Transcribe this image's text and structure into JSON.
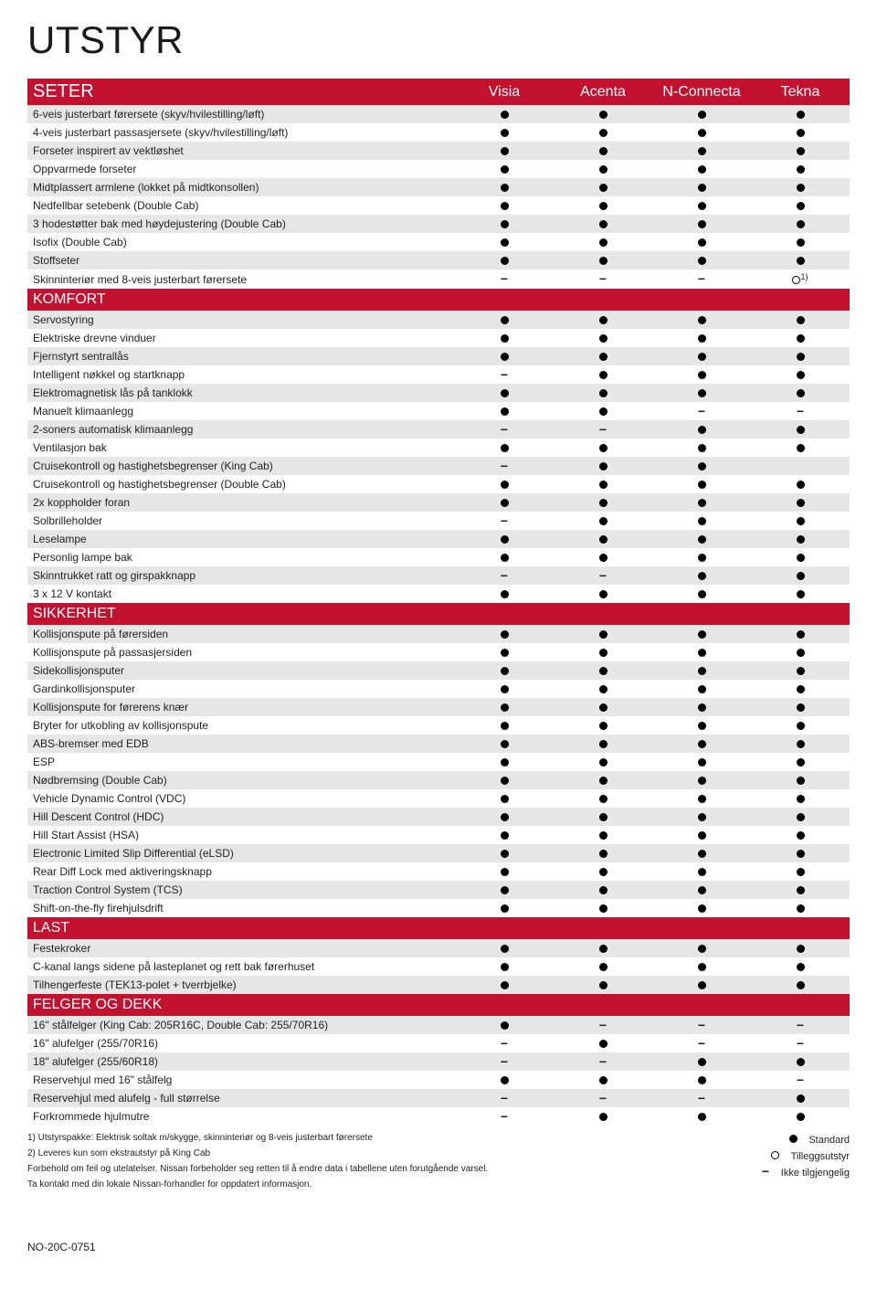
{
  "title": "UTSTYR",
  "columns": [
    "Visia",
    "Acenta",
    "N-Connecta",
    "Tekna"
  ],
  "sections": [
    {
      "name": "SETER",
      "show_columns": true,
      "rows": [
        {
          "label": "6-veis justerbart førersete (skyv/hvilestilling/løft)",
          "cells": [
            "●",
            "●",
            "●",
            "●"
          ]
        },
        {
          "label": "4-veis justerbart passasjersete (skyv/hvilestilling/løft)",
          "cells": [
            "●",
            "●",
            "●",
            "●"
          ]
        },
        {
          "label": "Forseter inspirert av vektløshet",
          "cells": [
            "●",
            "●",
            "●",
            "●"
          ]
        },
        {
          "label": "Oppvarmede forseter",
          "cells": [
            "●",
            "●",
            "●",
            "●"
          ]
        },
        {
          "label": "Midtplassert armlene (lokket på midtkonsollen)",
          "cells": [
            "●",
            "●",
            "●",
            "●"
          ]
        },
        {
          "label": "Nedfellbar setebenk (Double Cab)",
          "cells": [
            "●",
            "●",
            "●",
            "●"
          ]
        },
        {
          "label": "3 hodestøtter bak med høydejustering (Double Cab)",
          "cells": [
            "●",
            "●",
            "●",
            "●"
          ]
        },
        {
          "label": "Isofix (Double Cab)",
          "cells": [
            "●",
            "●",
            "●",
            "●"
          ]
        },
        {
          "label": "Stoffseter",
          "cells": [
            "●",
            "●",
            "●",
            "●"
          ]
        },
        {
          "label": "Skinninteriør med 8-veis justerbart førersete",
          "cells": [
            "−",
            "−",
            "−",
            "○"
          ],
          "note": "1)"
        }
      ]
    },
    {
      "name": "KOMFORT",
      "rows": [
        {
          "label": "Servostyring",
          "cells": [
            "●",
            "●",
            "●",
            "●"
          ]
        },
        {
          "label": "Elektriske drevne vinduer",
          "cells": [
            "●",
            "●",
            "●",
            "●"
          ]
        },
        {
          "label": "Fjernstyrt sentrallås",
          "cells": [
            "●",
            "●",
            "●",
            "●"
          ]
        },
        {
          "label": "Intelligent nøkkel og startknapp",
          "cells": [
            "−",
            "●",
            "●",
            "●"
          ]
        },
        {
          "label": "Elektromagnetisk lås på tanklokk",
          "cells": [
            "●",
            "●",
            "●",
            "●"
          ]
        },
        {
          "label": "Manuelt klimaanlegg",
          "cells": [
            "●",
            "●",
            "−",
            "−"
          ]
        },
        {
          "label": "2-soners automatisk klimaanlegg",
          "cells": [
            "−",
            "−",
            "●",
            "●"
          ]
        },
        {
          "label": "Ventilasjon bak",
          "cells": [
            "●",
            "●",
            "●",
            "●"
          ]
        },
        {
          "label": "Cruisekontroll og hastighetsbegrenser (King Cab)",
          "cells": [
            "−",
            "●",
            "●",
            ""
          ]
        },
        {
          "label": "Cruisekontroll og hastighetsbegrenser (Double Cab)",
          "cells": [
            "●",
            "●",
            "●",
            "●"
          ]
        },
        {
          "label": "2x koppholder foran",
          "cells": [
            "●",
            "●",
            "●",
            "●"
          ]
        },
        {
          "label": "Solbrilleholder",
          "cells": [
            "−",
            "●",
            "●",
            "●"
          ]
        },
        {
          "label": "Leselampe",
          "cells": [
            "●",
            "●",
            "●",
            "●"
          ]
        },
        {
          "label": "Personlig lampe bak",
          "cells": [
            "●",
            "●",
            "●",
            "●"
          ]
        },
        {
          "label": "Skinntrukket ratt og girspakknapp",
          "cells": [
            "−",
            "−",
            "●",
            "●"
          ]
        },
        {
          "label": "3 x 12 V kontakt",
          "cells": [
            "●",
            "●",
            "●",
            "●"
          ]
        }
      ]
    },
    {
      "name": "SIKKERHET",
      "rows": [
        {
          "label": "Kollisjonspute på førersiden",
          "cells": [
            "●",
            "●",
            "●",
            "●"
          ]
        },
        {
          "label": "Kollisjonspute på passasjersiden",
          "cells": [
            "●",
            "●",
            "●",
            "●"
          ]
        },
        {
          "label": "Sidekollisjonsputer",
          "cells": [
            "●",
            "●",
            "●",
            "●"
          ]
        },
        {
          "label": "Gardinkollisjonsputer",
          "cells": [
            "●",
            "●",
            "●",
            "●"
          ]
        },
        {
          "label": "Kollisjonspute for førerens knær",
          "cells": [
            "●",
            "●",
            "●",
            "●"
          ]
        },
        {
          "label": "Bryter for utkobling av kollisjonspute",
          "cells": [
            "●",
            "●",
            "●",
            "●"
          ]
        },
        {
          "label": "ABS-bremser med EDB",
          "cells": [
            "●",
            "●",
            "●",
            "●"
          ]
        },
        {
          "label": "ESP",
          "cells": [
            "●",
            "●",
            "●",
            "●"
          ]
        },
        {
          "label": "Nødbremsing (Double Cab)",
          "cells": [
            "●",
            "●",
            "●",
            "●"
          ]
        },
        {
          "label": "Vehicle Dynamic Control (VDC)",
          "cells": [
            "●",
            "●",
            "●",
            "●"
          ]
        },
        {
          "label": "Hill Descent Control (HDC)",
          "cells": [
            "●",
            "●",
            "●",
            "●"
          ]
        },
        {
          "label": "Hill Start Assist (HSA)",
          "cells": [
            "●",
            "●",
            "●",
            "●"
          ]
        },
        {
          "label": "Electronic Limited Slip Differential (eLSD)",
          "cells": [
            "●",
            "●",
            "●",
            "●"
          ]
        },
        {
          "label": "Rear Diff Lock med aktiveringsknapp",
          "cells": [
            "●",
            "●",
            "●",
            "●"
          ]
        },
        {
          "label": "Traction Control System (TCS)",
          "cells": [
            "●",
            "●",
            "●",
            "●"
          ]
        },
        {
          "label": "Shift-on-the-fly firehjulsdrift",
          "cells": [
            "●",
            "●",
            "●",
            "●"
          ]
        }
      ]
    },
    {
      "name": "LAST",
      "rows": [
        {
          "label": "Festekroker",
          "cells": [
            "●",
            "●",
            "●",
            "●"
          ]
        },
        {
          "label": "C-kanal langs sidene på lasteplanet og rett bak førerhuset",
          "cells": [
            "●",
            "●",
            "●",
            "●"
          ]
        },
        {
          "label": "Tilhengerfeste (TEK13-polet + tverrbjelke)",
          "cells": [
            "●",
            "●",
            "●",
            "●"
          ]
        }
      ]
    },
    {
      "name": "FELGER OG DEKK",
      "rows": [
        {
          "label": "16\" stålfelger (King Cab: 205R16C, Double Cab: 255/70R16)",
          "cells": [
            "●",
            "−",
            "−",
            "−"
          ]
        },
        {
          "label": "16\" alufelger (255/70R16)",
          "cells": [
            "−",
            "●",
            "−",
            "−"
          ]
        },
        {
          "label": "18\" alufelger (255/60R18)",
          "cells": [
            "−",
            "−",
            "●",
            "●"
          ]
        },
        {
          "label": "Reservehjul med 16\" stålfelg",
          "cells": [
            "●",
            "●",
            "●",
            "−"
          ]
        },
        {
          "label": "Reservehjul med alufelg - full størrelse",
          "cells": [
            "−",
            "−",
            "−",
            "●"
          ]
        },
        {
          "label": "Forkrommede hjulmutre",
          "cells": [
            "−",
            "●",
            "●",
            "●"
          ]
        }
      ]
    }
  ],
  "footnotes": {
    "n1": "1) Utstyrspakke: Elektrisk soltak m/skygge, skinninteriør og 8-veis justerbart førersete",
    "n2": "2) Leveres kun som ekstrautstyr på King Cab",
    "disclaimer1": "Forbehold om feil og utelatelser. Nissan forbeholder seg retten til å endre data i tabellene uten forutgående varsel.",
    "disclaimer2": "Ta kontakt med din lokale Nissan-forhandler for oppdatert informasjon."
  },
  "legend": {
    "standard": "Standard",
    "optional": "Tilleggsutstyr",
    "na": "Ikke tilgjengelig"
  },
  "doc_code": "NO-20C-0751"
}
